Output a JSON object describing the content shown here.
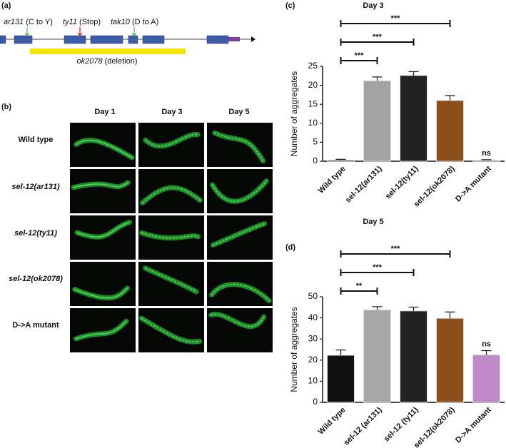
{
  "panel_a": {
    "label": "(a)",
    "mutations": [
      {
        "allele": "ar131",
        "change": "(C to Y)"
      },
      {
        "allele": "ty11",
        "change": "(Stop)"
      },
      {
        "allele": "tak10",
        "change": "(D to A)"
      }
    ],
    "deletion": {
      "allele": "ok2078",
      "change": "(deletion)"
    }
  },
  "panel_b": {
    "label": "(b)",
    "columns": [
      "Day 1",
      "Day 3",
      "Day 5"
    ],
    "rows": [
      "Wild type",
      "sel-12(ar131)",
      "sel-12(ty11)",
      "sel-12(ok2078)",
      "D->A mutant"
    ]
  },
  "chart_data": [
    {
      "type": "bar",
      "panel_label": "(c)",
      "title": "Day 3",
      "y_label": "Number of aggregates",
      "categories": [
        "Wild type",
        "sel-12(ar131)",
        "sel-12(ty11)",
        "sel-12(ok2078)",
        "D->A mutant"
      ],
      "values": [
        0.3,
        21.2,
        22.6,
        16,
        0.3
      ],
      "errors": [
        0.2,
        1,
        1,
        1.3,
        0.1
      ],
      "colors": [
        "#111111",
        "#a3a3a3",
        "#222222",
        "#8b4f1e",
        "#c08ac8"
      ],
      "ylim": [
        0,
        25
      ],
      "yticks": [
        0,
        5,
        10,
        15,
        20,
        25
      ],
      "significance": [
        null,
        "***",
        "***",
        "***",
        "ns"
      ]
    },
    {
      "type": "bar",
      "panel_label": "(d)",
      "title": "Day 5",
      "y_label": "Number of aggregates",
      "categories": [
        "Wild type",
        "sel-12 (ar131)",
        "sel-12 (ty11)",
        "sel-12(ok2078)",
        "D->A mutant"
      ],
      "values": [
        22.3,
        43.8,
        43.3,
        39.8,
        22.5
      ],
      "errors": [
        2.5,
        1.5,
        1.8,
        3,
        2
      ],
      "colors": [
        "#111111",
        "#a8a8a8",
        "#222222",
        "#8b4f1e",
        "#c08ac8"
      ],
      "ylim": [
        0,
        50
      ],
      "yticks": [
        0,
        10,
        20,
        30,
        40,
        50
      ],
      "significance": [
        null,
        "**",
        "***",
        "***",
        "ns"
      ]
    }
  ]
}
